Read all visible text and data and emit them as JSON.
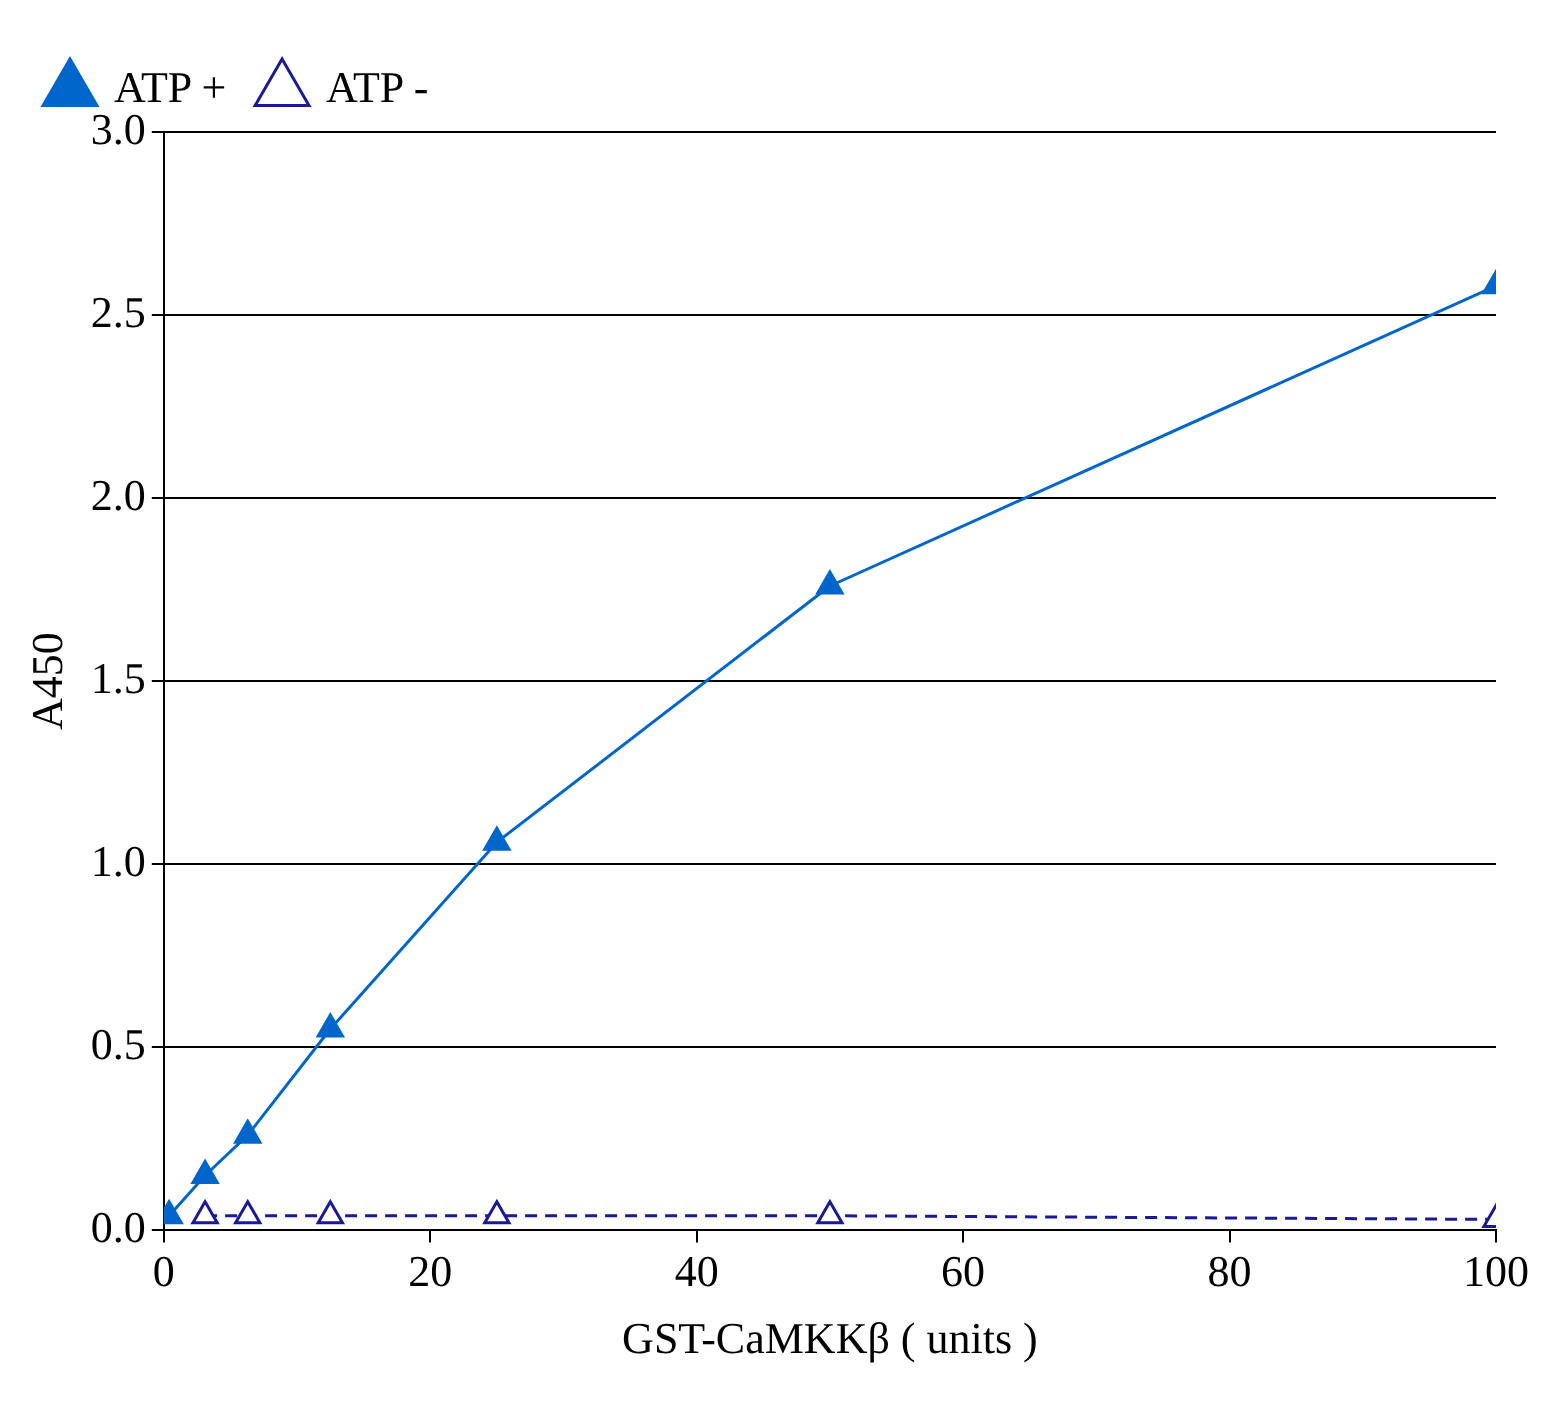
{
  "chart_data": {
    "type": "line",
    "xlabel": "GST-CaMKKβ ( units )",
    "ylabel": "A450",
    "xlim": [
      0,
      100
    ],
    "xticks": [
      0,
      20,
      40,
      60,
      80,
      100
    ],
    "ylim": [
      0,
      3
    ],
    "yticks": [
      {
        "value": 0,
        "label": "0.0"
      },
      {
        "value": 0.5,
        "label": "0.5"
      },
      {
        "value": 1,
        "label": "1.0"
      },
      {
        "value": 1.5,
        "label": "1.5"
      },
      {
        "value": 2,
        "label": "2.0"
      },
      {
        "value": 2.5,
        "label": "2.5"
      },
      {
        "value": 3,
        "label": "3.0"
      }
    ],
    "grid": "y",
    "legend": "top left",
    "marker": "triangle",
    "series": [
      {
        "name": "ATP +",
        "color": "#0066cc",
        "line_style": "solid",
        "x": [
          0.4,
          3.1,
          6.3,
          12.5,
          25,
          50,
          100
        ],
        "values": [
          0.04,
          0.15,
          0.26,
          0.55,
          1.06,
          1.76,
          2.58
        ]
      },
      {
        "name": "ATP -",
        "color": "#1a1a99",
        "line_style": "dashed",
        "x": [
          3.1,
          6.3,
          12.5,
          25,
          50,
          100
        ],
        "values": [
          0.04,
          0.04,
          0.04,
          0.04,
          0.04,
          0.03
        ]
      }
    ]
  }
}
